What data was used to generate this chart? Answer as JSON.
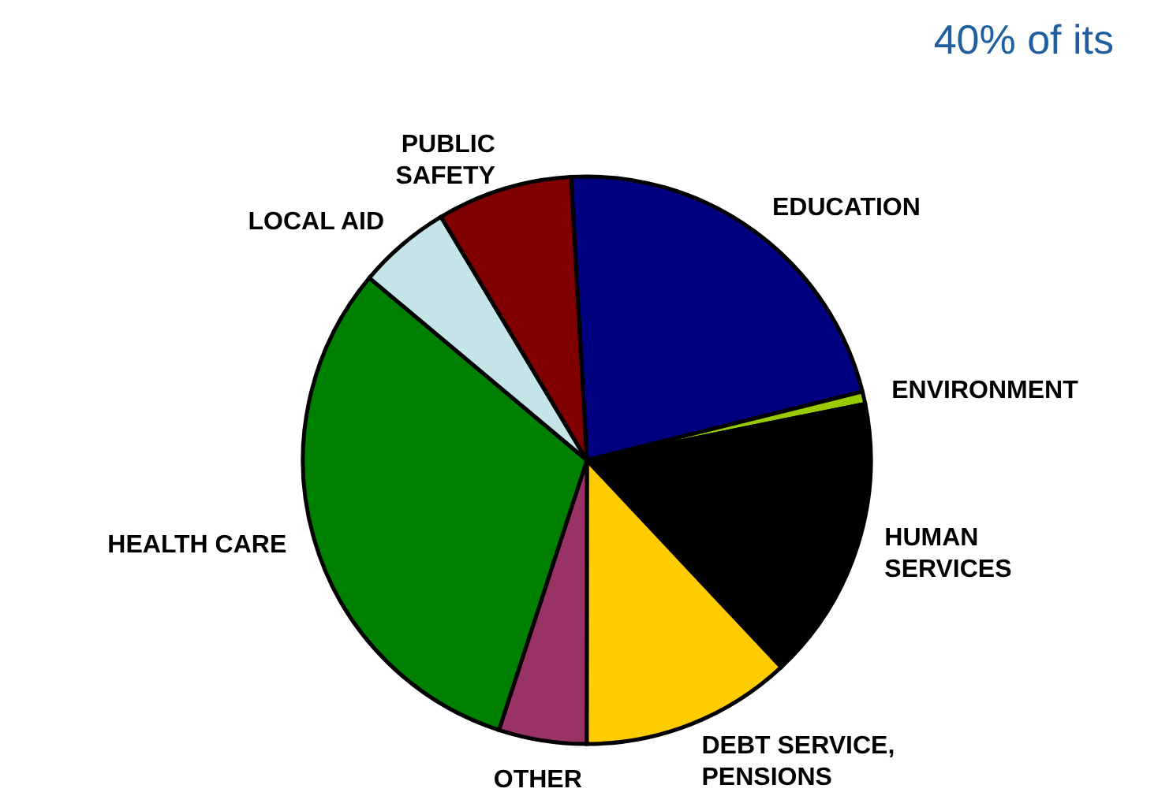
{
  "chart_data": {
    "type": "pie",
    "categories": [
      "EDUCATION",
      "ENVIRONMENT",
      "HUMAN SERVICES",
      "DEBT SERVICE, PENSIONS",
      "OTHER",
      "HEALTH CARE",
      "LOCAL AID",
      "PUBLIC SAFETY"
    ],
    "values": [
      22.0,
      0.7,
      16.2,
      12.0,
      5.0,
      31.1,
      5.3,
      7.7
    ],
    "colors": [
      "#000080",
      "#99cc00",
      "#000000",
      "#ffcc00",
      "#993366",
      "#008000",
      "#c4e4e8",
      "#800000"
    ],
    "annotations": [
      "40% of its"
    ],
    "legend": false
  }
}
